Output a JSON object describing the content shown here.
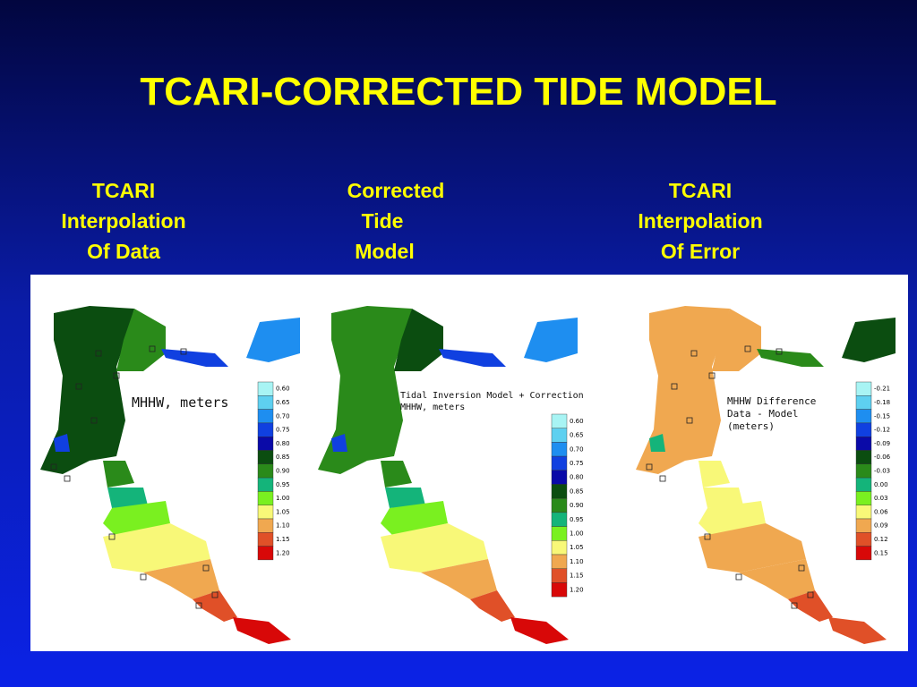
{
  "title": "TCARI-CORRECTED TIDE MODEL",
  "columns": [
    [
      "TCARI",
      "Interpolation",
      "Of Data"
    ],
    [
      "Corrected",
      "Tide",
      "Model"
    ],
    [
      "TCARI",
      "Interpolation",
      "Of Error"
    ]
  ],
  "panels": [
    {
      "annotation": [
        "MHHW, meters"
      ],
      "legend": [
        "0.60",
        "0.65",
        "0.70",
        "0.75",
        "0.80",
        "0.85",
        "0.90",
        "0.95",
        "1.00",
        "1.05",
        "1.10",
        "1.15",
        "1.20"
      ]
    },
    {
      "annotation": [
        "Tidal Inversion Model + Correction",
        "MHHW, meters"
      ],
      "legend": [
        "0.60",
        "0.65",
        "0.70",
        "0.75",
        "0.80",
        "0.85",
        "0.90",
        "0.95",
        "1.00",
        "1.05",
        "1.10",
        "1.15",
        "1.20"
      ]
    },
    {
      "annotation": [
        "MHHW Difference",
        "Data - Model",
        "(meters)"
      ],
      "legend": [
        "-0.21",
        "-0.18",
        "-0.15",
        "-0.12",
        "-0.09",
        "-0.06",
        "-0.03",
        "0.00",
        "0.03",
        "0.06",
        "0.09",
        "0.12",
        "0.15"
      ]
    }
  ]
}
